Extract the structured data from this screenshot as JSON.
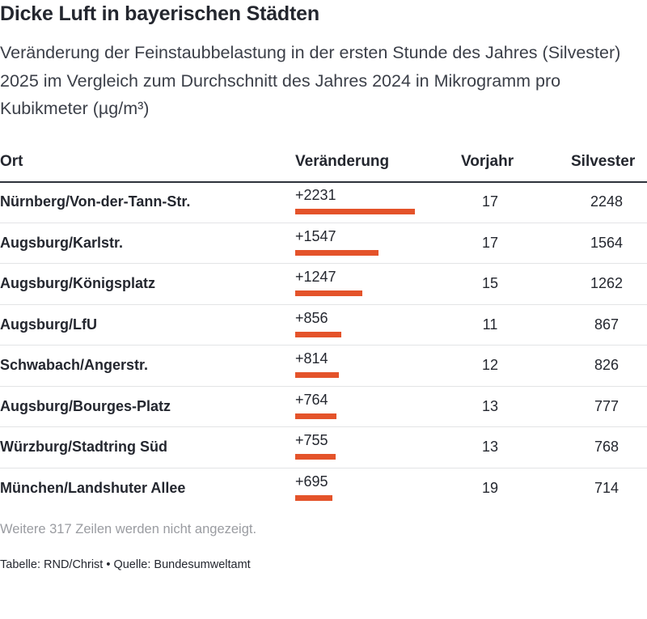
{
  "title": "Dicke Luft in bayerischen Städten",
  "subtitle": "Veränderung der Feinstaubbelastung in der ersten Stunde des Jahres (Silvester) 2025 im Vergleich zum Durchschnitt des Jahres 2024 in Mikrogramm pro Kubikmeter (µg/m³)",
  "chart_data": {
    "type": "table",
    "columns": [
      "Ort",
      "Veränderung",
      "Vorjahr",
      "Silvester"
    ],
    "bar_max": 2231,
    "rows": [
      {
        "ort": "Nürnberg/Von-der-Tann-Str.",
        "veraenderung": "+2231",
        "value": 2231,
        "vorjahr": "17",
        "silvester": "2248"
      },
      {
        "ort": "Augsburg/Karlstr.",
        "veraenderung": "+1547",
        "value": 1547,
        "vorjahr": "17",
        "silvester": "1564"
      },
      {
        "ort": "Augsburg/Königsplatz",
        "veraenderung": "+1247",
        "value": 1247,
        "vorjahr": "15",
        "silvester": "1262"
      },
      {
        "ort": "Augsburg/LfU",
        "veraenderung": "+856",
        "value": 856,
        "vorjahr": "11",
        "silvester": "867"
      },
      {
        "ort": "Schwabach/Angerstr.",
        "veraenderung": "+814",
        "value": 814,
        "vorjahr": "12",
        "silvester": "826"
      },
      {
        "ort": "Augsburg/Bourges-Platz",
        "veraenderung": "+764",
        "value": 764,
        "vorjahr": "13",
        "silvester": "777"
      },
      {
        "ort": "Würzburg/Stadtring Süd",
        "veraenderung": "+755",
        "value": 755,
        "vorjahr": "13",
        "silvester": "768"
      },
      {
        "ort": "München/Landshuter Allee",
        "veraenderung": "+695",
        "value": 695,
        "vorjahr": "19",
        "silvester": "714"
      }
    ],
    "bar_color": "#e4532a"
  },
  "footer": {
    "note": "Weitere 317 Zeilen werden nicht angezeigt.",
    "source": "Tabelle: RND/Christ • Quelle: Bundesumweltamt"
  }
}
